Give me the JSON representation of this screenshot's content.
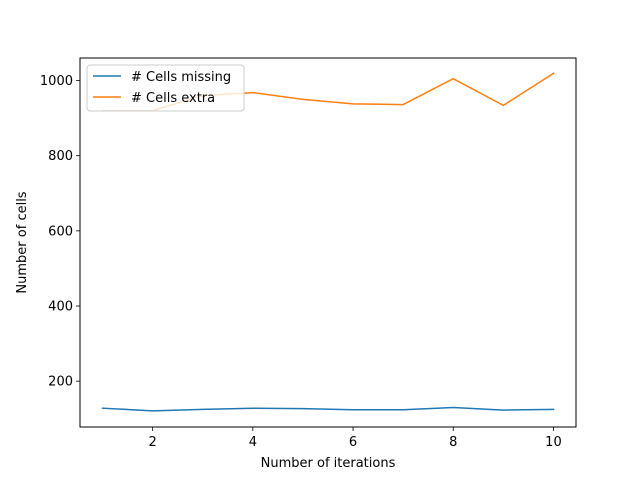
{
  "chart_data": {
    "type": "line",
    "title": "",
    "xlabel": "Number of iterations",
    "ylabel": "Number of cells",
    "xlim": [
      0.55,
      10.45
    ],
    "ylim": [
      78,
      1060
    ],
    "xticks": [
      2,
      4,
      6,
      8,
      10
    ],
    "yticks": [
      200,
      400,
      600,
      800,
      1000
    ],
    "grid": false,
    "legend_position": "upper-left",
    "x": [
      1,
      2,
      3,
      4,
      5,
      6,
      7,
      8,
      9,
      10
    ],
    "series": [
      {
        "name": "# Cells missing",
        "color": "#1f77b4",
        "values": [
          128,
          121,
          125,
          128,
          127,
          124,
          124,
          130,
          123,
          125
        ]
      },
      {
        "name": "# Cells extra",
        "color": "#ff7f0e",
        "values": [
          920,
          920,
          960,
          968,
          950,
          938,
          936,
          1005,
          934,
          1019
        ]
      }
    ]
  }
}
